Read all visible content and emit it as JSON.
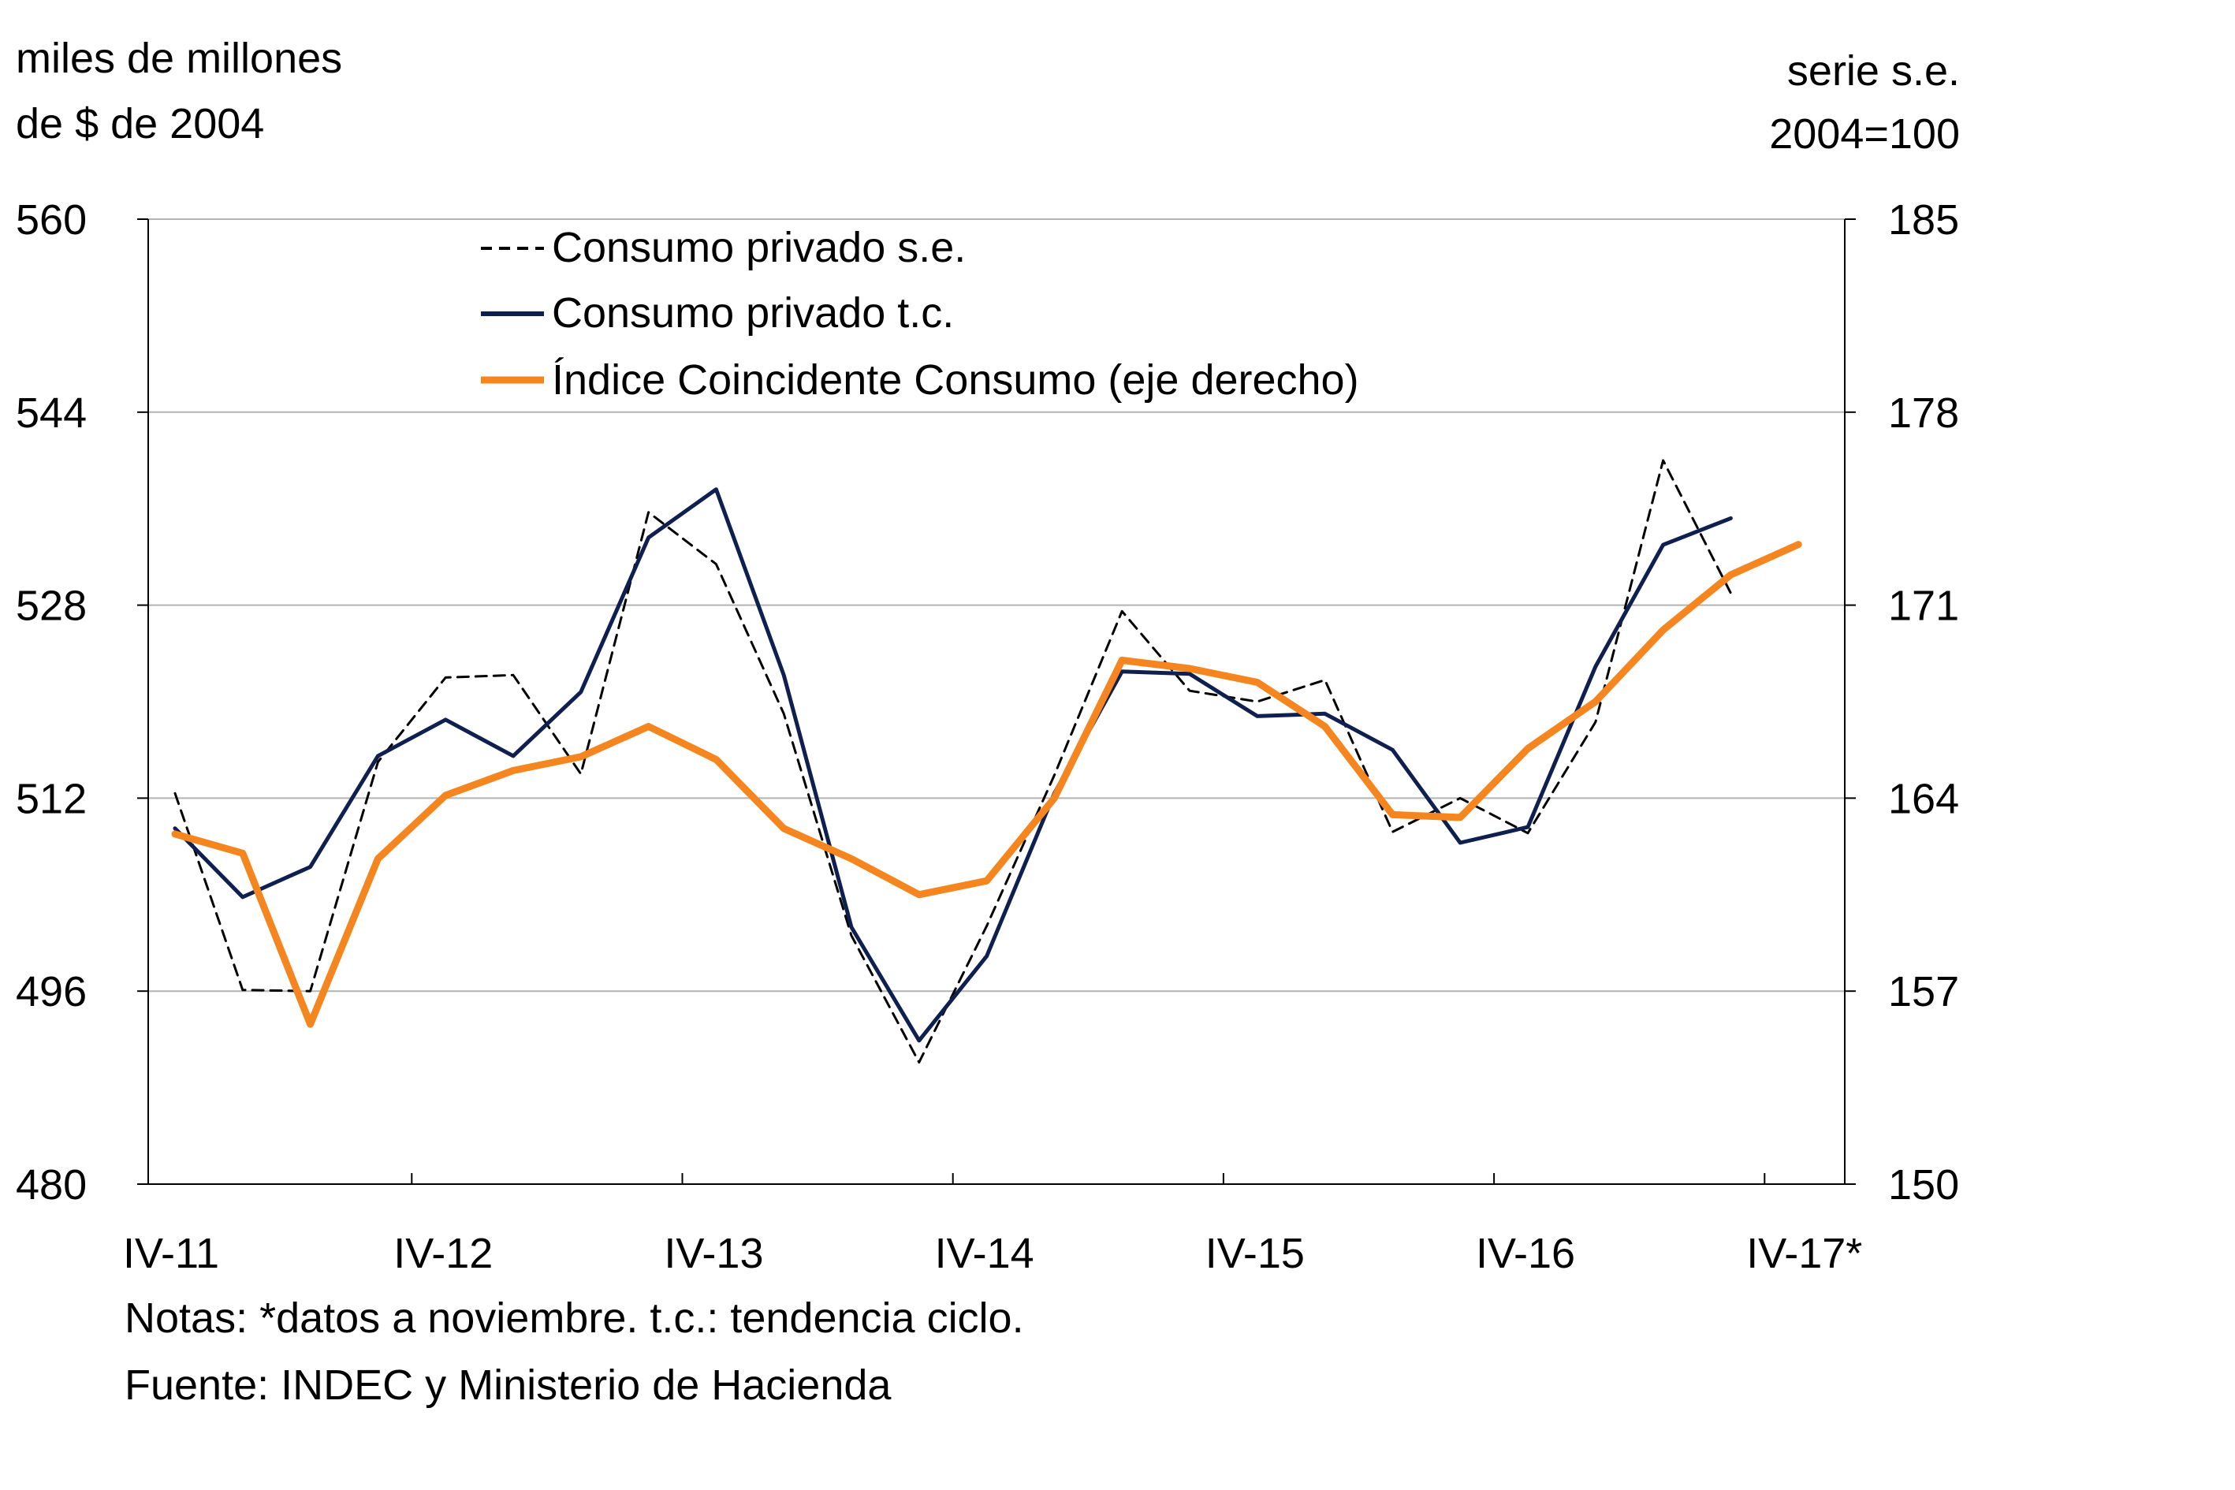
{
  "left_axis_label": [
    "miles de millones",
    "de $ de 2004"
  ],
  "right_axis_label": [
    "serie s.e.",
    "2004=100"
  ],
  "notes": "Notas: *datos a noviembre. t.c.: tendencia ciclo.",
  "source": "Fuente: INDEC y Ministerio de Hacienda",
  "chart_data": {
    "type": "line",
    "title": "",
    "x_tick_labels": [
      "IV-11",
      "IV-12",
      "IV-13",
      "IV-14",
      "IV-15",
      "IV-16",
      "IV-17*"
    ],
    "x_range": [
      0,
      24
    ],
    "y_left": {
      "range": [
        480,
        560
      ],
      "ticks": [
        "480",
        "496",
        "512",
        "528",
        "544",
        "560"
      ]
    },
    "y_right": {
      "range": [
        150,
        185
      ],
      "ticks": [
        "150",
        "157",
        "164",
        "171",
        "178",
        "185"
      ]
    },
    "grid": "horizontal",
    "legend": {
      "position": "top-left"
    },
    "series": [
      {
        "name": "Consumo privado s.e.",
        "axis": "left",
        "color": "#000000",
        "style": "dashed",
        "x": [
          0,
          1,
          2,
          3,
          4,
          5,
          6,
          7,
          8,
          9,
          10,
          11,
          12,
          13,
          14,
          15,
          16,
          17,
          18,
          19,
          20,
          21,
          22,
          23
        ],
        "values": [
          512.4,
          496.1,
          496.0,
          515.0,
          522.0,
          522.2,
          514.0,
          535.7,
          531.4,
          519.0,
          500.6,
          490.1,
          501.4,
          513.9,
          527.5,
          520.9,
          520.0,
          521.8,
          509.2,
          512.0,
          509.1,
          518.3,
          540.0,
          529.0
        ],
        "marks": "line-series-se"
      },
      {
        "name": "Consumo privado t.c.",
        "axis": "left",
        "color": "#0f1f4f",
        "style": "solid",
        "x": [
          0,
          1,
          2,
          3,
          4,
          5,
          6,
          7,
          8,
          9,
          10,
          11,
          12,
          13,
          14,
          15,
          16,
          17,
          18,
          19,
          20,
          21,
          22,
          23
        ],
        "values": [
          509.5,
          503.8,
          506.3,
          515.5,
          518.5,
          515.5,
          520.8,
          533.6,
          537.6,
          522.2,
          501.3,
          491.9,
          498.9,
          512.4,
          522.5,
          522.3,
          518.8,
          519.0,
          516.0,
          508.3,
          509.6,
          522.9,
          533.0,
          535.2
        ],
        "marks": "line-series-tc"
      },
      {
        "name": "Índice Coincidente Consumo (eje derecho)",
        "axis": "right",
        "color": "#f5861f",
        "style": "solid",
        "x": [
          0,
          1,
          2,
          3,
          4,
          5,
          6,
          7,
          8,
          9,
          10,
          11,
          12,
          13,
          14,
          15,
          16,
          17,
          18,
          19,
          20,
          21,
          22,
          23,
          24
        ],
        "values": [
          162.7,
          162.0,
          155.8,
          161.8,
          164.1,
          165.0,
          165.5,
          166.6,
          165.4,
          162.9,
          161.8,
          160.5,
          161.0,
          164.0,
          169.0,
          168.7,
          168.2,
          166.6,
          163.4,
          163.3,
          165.8,
          167.5,
          170.1,
          172.1,
          173.2
        ],
        "marks": "line-series-ici"
      }
    ]
  }
}
